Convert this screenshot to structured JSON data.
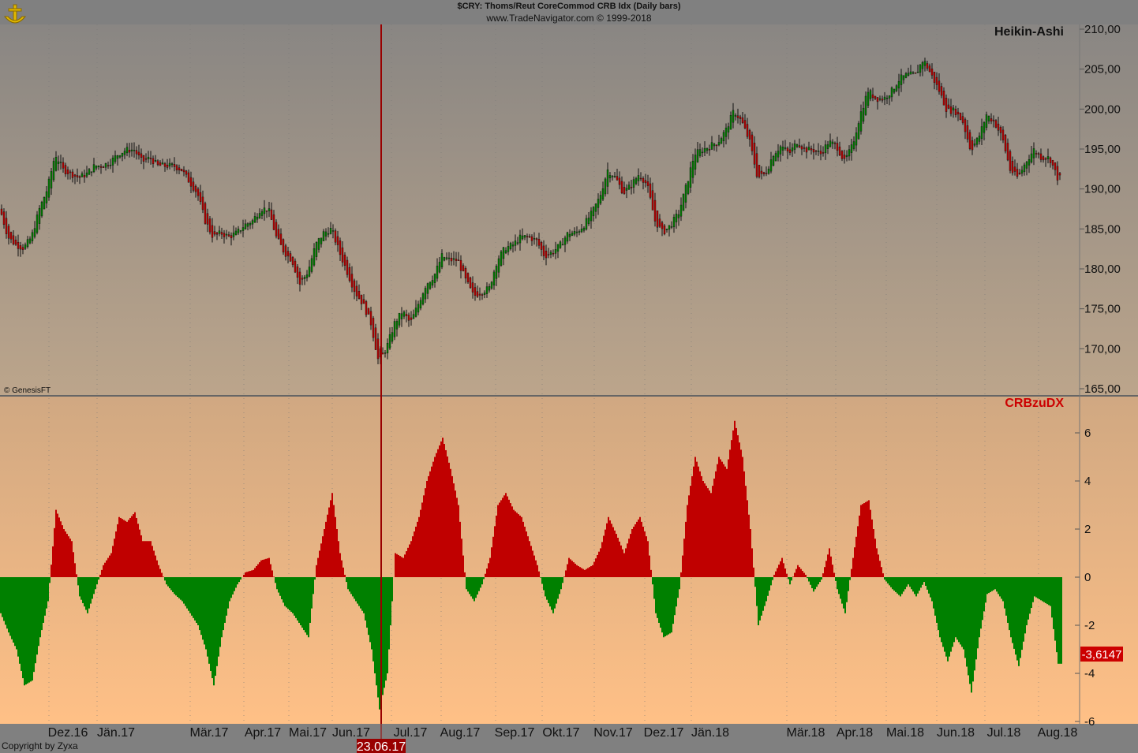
{
  "header": {
    "title": "$CRY:  Thoms/Reut CoreCommod CRB Idx  (Daily bars)",
    "subtitle": "www.TradeNavigator.com © 1999-2018"
  },
  "footer": {
    "copyright": "Copyright by Zyxa",
    "watermark": "© GenesisFT"
  },
  "cursor": {
    "date_label": "23.06.17"
  },
  "colors": {
    "up": "#008000",
    "down": "#c00000",
    "cursor": "#990000",
    "indicator_title": "#cc0000"
  },
  "chart_data": [
    {
      "type": "candlestick",
      "title": "Heikin-Ashi",
      "ylim": [
        165,
        210
      ],
      "yticks": [
        "210,00",
        "205,00",
        "200,00",
        "195,00",
        "190,00",
        "185,00",
        "180,00",
        "175,00",
        "170,00",
        "165,00"
      ],
      "x_ticks": [
        "Dez.16",
        "Jän.17",
        "Mär.17",
        "Apr.17",
        "Mai.17",
        "Jun.17",
        "Jul.17",
        "Aug.17",
        "Sep.17",
        "Okt.17",
        "Nov.17",
        "Dez.17",
        "Jän.18",
        "Mär.18",
        "Apr.18",
        "Mai.18",
        "Jun.18",
        "Jul.18",
        "Aug.18"
      ],
      "approx_close_weekly": [
        187.5,
        184.0,
        183.0,
        182.6,
        184.0,
        187.5,
        190.0,
        194.4,
        192.4,
        191.9,
        191.4,
        191.9,
        192.9,
        192.9,
        193.4,
        194.4,
        194.9,
        194.9,
        193.4,
        193.9,
        192.9,
        192.9,
        192.9,
        192.4,
        190.9,
        189.5,
        186.0,
        184.0,
        184.5,
        184.0,
        184.5,
        185.5,
        186.0,
        187.5,
        187.5,
        184.0,
        182.1,
        181.1,
        178.1,
        179.6,
        183.0,
        184.5,
        185.0,
        182.1,
        179.6,
        177.1,
        175.6,
        173.2,
        168.2,
        170.2,
        173.2,
        174.7,
        173.2,
        175.6,
        178.1,
        179.1,
        181.6,
        181.1,
        181.1,
        178.6,
        176.6,
        177.1,
        177.6,
        181.1,
        182.6,
        183.0,
        184.0,
        184.0,
        183.5,
        181.6,
        182.1,
        183.0,
        184.5,
        184.5,
        185.5,
        187.0,
        189.0,
        192.4,
        191.4,
        189.5,
        190.5,
        191.9,
        190.5,
        186.0,
        184.5,
        185.5,
        187.0,
        190.5,
        194.4,
        194.9,
        195.4,
        195.9,
        197.4,
        199.8,
        198.4,
        195.9,
        191.4,
        191.9,
        194.4,
        195.4,
        194.4,
        195.9,
        194.9,
        194.9,
        194.4,
        195.9,
        195.4,
        193.4,
        195.4,
        199.3,
        202.3,
        201.3,
        201.3,
        202.3,
        203.8,
        204.3,
        204.3,
        206.2,
        204.3,
        202.3,
        199.8,
        199.8,
        198.4,
        194.9,
        196.4,
        199.3,
        198.4,
        196.4,
        192.4,
        191.4,
        193.4,
        194.9,
        193.9,
        193.9,
        191.4
      ]
    },
    {
      "type": "bar",
      "title": "CRBzuDX",
      "ylim": [
        -6,
        7
      ],
      "yticks": [
        "6",
        "4",
        "2",
        "0",
        "-2",
        "-4",
        "-6"
      ],
      "last_value": "-3,6147",
      "approx_values": [
        -1.5,
        -2.3,
        -3,
        -4.5,
        -4.3,
        -2.5,
        -1,
        2.8,
        2,
        1.5,
        -0.8,
        -1.5,
        -0.5,
        0.5,
        1,
        2.5,
        2.3,
        2.7,
        1.5,
        1.5,
        0.5,
        -0.3,
        -0.7,
        -1,
        -1.5,
        -2,
        -3,
        -4.5,
        -2.5,
        -1,
        -0.3,
        0.2,
        0.3,
        0.7,
        0.8,
        -0.5,
        -1.2,
        -1.5,
        -2,
        -2.5,
        0.5,
        2,
        3.5,
        1,
        -0.5,
        -1,
        -1.5,
        -3,
        -5.5,
        -4,
        1,
        0.8,
        1.5,
        2.5,
        4,
        5,
        5.8,
        4.5,
        3,
        -0.5,
        -1,
        -0.3,
        0.8,
        3,
        3.5,
        2.8,
        2.5,
        1.5,
        0.5,
        -0.8,
        -1.5,
        -0.5,
        0.8,
        0.5,
        0.3,
        0.5,
        1.2,
        2.5,
        1.8,
        1,
        2,
        2.5,
        1.5,
        -1.5,
        -2.5,
        -2.3,
        -0.5,
        3,
        5,
        4,
        3.5,
        5,
        4.5,
        6.5,
        5,
        2,
        -2,
        -1,
        0.1,
        0.8,
        -0.3,
        0.5,
        0.1,
        -0.6,
        -0.1,
        1.2,
        -0.5,
        -1.5,
        0.8,
        3,
        3.2,
        1.2,
        -0.1,
        -0.5,
        -0.8,
        -0.3,
        -0.8,
        -0.2,
        -1,
        -2.5,
        -3.5,
        -2.5,
        -3,
        -4.8,
        -2.5,
        -0.7,
        -0.5,
        -1,
        -2.5,
        -3.7,
        -2,
        -0.8,
        -1,
        -1.2,
        -3.6
      ]
    }
  ]
}
